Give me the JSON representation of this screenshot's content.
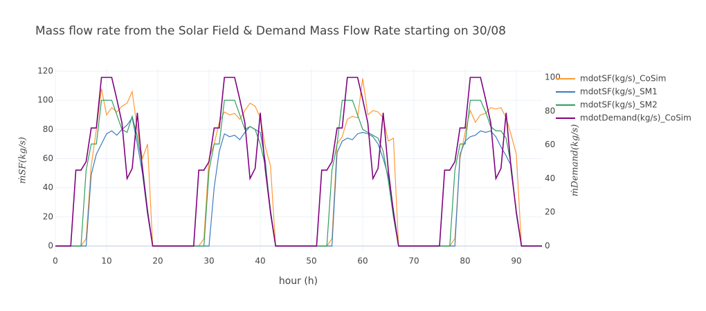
{
  "chart_data": {
    "type": "line",
    "title": "Mass flow rate from the Solar Field & Demand Mass Flow Rate starting on 30/08",
    "x_label": "hour (h)",
    "y_label": "ṁSF(kg/s)",
    "y2_label": "ṁDemand(kg/s)",
    "xlim": [
      0,
      95
    ],
    "xticks": [
      0,
      10,
      20,
      30,
      40,
      50,
      60,
      70,
      80,
      90
    ],
    "ylim": [
      -3.8,
      121.4
    ],
    "yticks": [
      0,
      20,
      40,
      60,
      80,
      100,
      120
    ],
    "y2lim": [
      -3.3,
      104.9
    ],
    "y2ticks": [
      0,
      20,
      40,
      60,
      80,
      100
    ],
    "grid": true,
    "x": [
      0,
      1,
      2,
      3,
      4,
      5,
      6,
      7,
      8,
      9,
      10,
      11,
      12,
      13,
      14,
      15,
      16,
      17,
      18,
      19,
      20,
      21,
      22,
      23,
      24,
      25,
      26,
      27,
      28,
      29,
      30,
      31,
      32,
      33,
      34,
      35,
      36,
      37,
      38,
      39,
      40,
      41,
      42,
      43,
      44,
      45,
      46,
      47,
      48,
      49,
      50,
      51,
      52,
      53,
      54,
      55,
      56,
      57,
      58,
      59,
      60,
      61,
      62,
      63,
      64,
      65,
      66,
      67,
      68,
      69,
      70,
      71,
      72,
      73,
      74,
      75,
      76,
      77,
      78,
      79,
      80,
      81,
      82,
      83,
      84,
      85,
      86,
      87,
      88,
      89,
      90,
      91,
      92,
      93,
      94,
      95
    ],
    "series": [
      {
        "name": "mdotSF(kg/s)_CoSim",
        "color": "#ff9933",
        "values": [
          0,
          0,
          0,
          0,
          0,
          0,
          5,
          55,
          80,
          108,
          90,
          95,
          92,
          96,
          98,
          106,
          80,
          60,
          70,
          0,
          0,
          0,
          0,
          0,
          0,
          0,
          0,
          0,
          0,
          5,
          60,
          70,
          85,
          92,
          90,
          91,
          87,
          93,
          98,
          96,
          88,
          68,
          55,
          0,
          0,
          0,
          0,
          0,
          0,
          0,
          0,
          0,
          0,
          0,
          5,
          70,
          75,
          87,
          89,
          88,
          115,
          90,
          93,
          92,
          88,
          72,
          74,
          0,
          0,
          0,
          0,
          0,
          0,
          0,
          0,
          0,
          0,
          0,
          5,
          60,
          78,
          93,
          85,
          90,
          91,
          95,
          94,
          95,
          88,
          76,
          63,
          0,
          0,
          0,
          0,
          0
        ]
      },
      {
        "name": "mdotSF(kg/s)_SM1",
        "color": "#3a7bbf",
        "values": [
          0,
          0,
          0,
          0,
          0,
          0,
          0,
          49,
          63,
          70,
          77,
          79,
          76,
          80,
          83,
          88,
          70,
          50,
          22,
          0,
          0,
          0,
          0,
          0,
          0,
          0,
          0,
          0,
          0,
          0,
          0,
          40,
          65,
          77,
          75,
          76,
          73,
          78,
          82,
          80,
          78,
          58,
          22,
          0,
          0,
          0,
          0,
          0,
          0,
          0,
          0,
          0,
          0,
          0,
          0,
          64,
          72,
          74,
          73,
          77,
          78,
          77,
          75,
          70,
          60,
          48,
          25,
          0,
          0,
          0,
          0,
          0,
          0,
          0,
          0,
          0,
          0,
          0,
          0,
          63,
          72,
          75,
          76,
          79,
          78,
          79,
          75,
          68,
          62,
          55,
          22,
          0,
          0,
          0,
          0,
          0
        ]
      },
      {
        "name": "mdotSF(kg/s)_SM2",
        "color": "#2e9e5b",
        "values": [
          0,
          0,
          0,
          0,
          0,
          0,
          52,
          70,
          70,
          100,
          100,
          100,
          90,
          80,
          78,
          89,
          75,
          55,
          25,
          0,
          0,
          0,
          0,
          0,
          0,
          0,
          0,
          0,
          0,
          0,
          52,
          70,
          70,
          100,
          100,
          100,
          90,
          80,
          82,
          80,
          70,
          55,
          25,
          0,
          0,
          0,
          0,
          0,
          0,
          0,
          0,
          0,
          0,
          0,
          52,
          70,
          100,
          100,
          100,
          90,
          80,
          78,
          76,
          74,
          65,
          45,
          20,
          0,
          0,
          0,
          0,
          0,
          0,
          0,
          0,
          0,
          0,
          0,
          52,
          70,
          70,
          100,
          100,
          100,
          92,
          82,
          79,
          79,
          74,
          55,
          22,
          0,
          0,
          0,
          0,
          0
        ]
      },
      {
        "name": "mdotDemand(kg/s)_CoSim",
        "color": "#800080",
        "axis": "y2",
        "values": [
          0,
          0,
          0,
          0,
          45,
          45,
          50,
          70,
          70,
          100,
          100,
          100,
          87,
          73,
          40,
          46,
          79,
          45,
          20,
          0,
          0,
          0,
          0,
          0,
          0,
          0,
          0,
          0,
          45,
          45,
          50,
          70,
          70,
          100,
          100,
          100,
          87,
          73,
          40,
          46,
          79,
          45,
          20,
          0,
          0,
          0,
          0,
          0,
          0,
          0,
          0,
          0,
          45,
          45,
          50,
          70,
          70,
          100,
          100,
          100,
          87,
          73,
          40,
          46,
          79,
          45,
          20,
          0,
          0,
          0,
          0,
          0,
          0,
          0,
          0,
          0,
          45,
          45,
          50,
          70,
          70,
          100,
          100,
          100,
          87,
          73,
          40,
          46,
          79,
          45,
          20,
          0,
          0,
          0,
          0,
          0
        ]
      }
    ]
  }
}
